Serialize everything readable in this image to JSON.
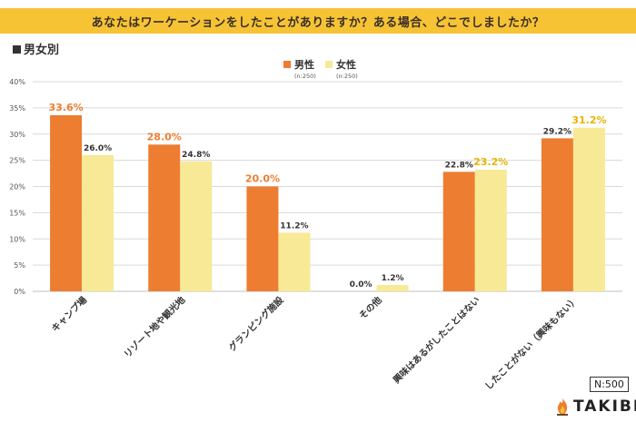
{
  "header": {
    "title": "あなたはワーケーションをしたことがありますか？ある場合、どこでしましたか？"
  },
  "section": {
    "label": "男女別"
  },
  "badge": {
    "sample": "N:500"
  },
  "logo": {
    "text": "TAKIBI",
    "icon": "flame-icon"
  },
  "colors": {
    "male": "#ed7d31",
    "female": "#f7e996",
    "female_label": "#e8b300",
    "grid": "#d9d9d9",
    "title_bg": "#f6c335"
  },
  "chart_data": {
    "type": "bar",
    "categories": [
      "キャンプ場",
      "リゾート地や観光地",
      "グランピング施設",
      "その他",
      "興味はあるがしたことはない",
      "したことがない（興味もない）"
    ],
    "series": [
      {
        "name": "男性",
        "n": "(n:250)",
        "values": [
          33.6,
          28.0,
          20.0,
          0.0,
          22.8,
          29.2
        ],
        "labels": [
          "33.6%",
          "28.0%",
          "20.0%",
          "0.0%",
          "22.8%",
          "29.2%"
        ],
        "highlight": [
          true,
          true,
          true,
          false,
          false,
          false
        ]
      },
      {
        "name": "女性",
        "n": "(n:250)",
        "values": [
          26.0,
          24.8,
          11.2,
          1.2,
          23.2,
          31.2
        ],
        "labels": [
          "26.0%",
          "24.8%",
          "11.2%",
          "1.2%",
          "23.2%",
          "31.2%"
        ],
        "highlight": [
          false,
          false,
          false,
          false,
          true,
          true
        ]
      }
    ],
    "y_ticks": [
      "0%",
      "5%",
      "10%",
      "15%",
      "20%",
      "25%",
      "30%",
      "35%",
      "40%"
    ],
    "ylim": [
      0,
      40
    ],
    "grid": true,
    "legend": "top-center"
  }
}
